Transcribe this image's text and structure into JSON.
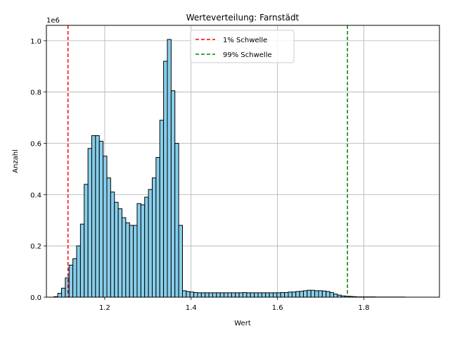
{
  "chart_data": {
    "type": "bar",
    "title": "Werteverteilung: Farnstädt",
    "xlabel": "Wert",
    "ylabel": "Anzahl",
    "y_offset_label": "1e6",
    "xlim": [
      1.065,
      1.975
    ],
    "ylim": [
      0,
      1.06
    ],
    "x_ticks": [
      1.2,
      1.4,
      1.6,
      1.8
    ],
    "x_tick_labels": [
      "1.2",
      "1.4",
      "1.6",
      "1.8"
    ],
    "y_ticks": [
      0.0,
      0.2,
      0.4,
      0.6,
      0.8,
      1.0
    ],
    "y_tick_labels": [
      "0.0",
      "0.2",
      "0.4",
      "0.6",
      "0.8",
      "1.0"
    ],
    "grid": true,
    "bar_color": "#87CEEB",
    "bar_edge_color": "#000000",
    "bin_start": 1.0825,
    "bin_width": 0.00875,
    "values": [
      0.002,
      0.015,
      0.035,
      0.075,
      0.125,
      0.15,
      0.2,
      0.285,
      0.44,
      0.58,
      0.63,
      0.63,
      0.608,
      0.55,
      0.465,
      0.41,
      0.37,
      0.345,
      0.31,
      0.29,
      0.28,
      0.28,
      0.365,
      0.36,
      0.39,
      0.42,
      0.465,
      0.545,
      0.69,
      0.92,
      1.005,
      0.805,
      0.6,
      0.28,
      0.025,
      0.022,
      0.02,
      0.018,
      0.017,
      0.017,
      0.017,
      0.017,
      0.017,
      0.017,
      0.017,
      0.017,
      0.017,
      0.017,
      0.017,
      0.017,
      0.018,
      0.017,
      0.017,
      0.017,
      0.017,
      0.017,
      0.017,
      0.017,
      0.017,
      0.017,
      0.018,
      0.018,
      0.02,
      0.02,
      0.022,
      0.023,
      0.025,
      0.027,
      0.027,
      0.025,
      0.025,
      0.024,
      0.022,
      0.018,
      0.012,
      0.008,
      0.005,
      0.004,
      0.003,
      0.002,
      0.001,
      0.001,
      0.001,
      0.001,
      0.001,
      0.0005,
      0.0005,
      0.0005,
      0.0005,
      0.0005,
      0.0005,
      0.0005,
      0.0005
    ],
    "thresholds": [
      {
        "name": "1% Schwelle",
        "x": 1.115,
        "color": "#ff0000"
      },
      {
        "name": "99% Schwelle",
        "x": 1.762,
        "color": "#008000"
      }
    ],
    "legend_position": "upper center"
  }
}
